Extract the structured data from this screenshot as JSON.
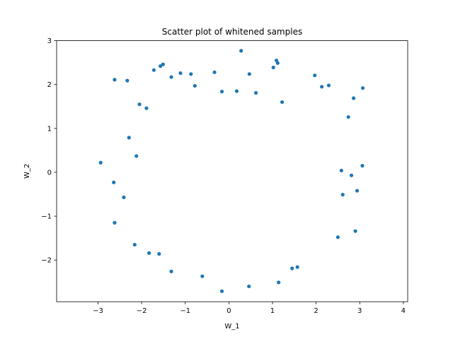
{
  "chart_data": {
    "type": "scatter",
    "title": "Scatter plot of whitened samples",
    "xlabel": "W_1",
    "ylabel": "W_2",
    "xlim": [
      -3.95,
      4.1
    ],
    "ylim": [
      -2.95,
      3.0
    ],
    "xticks": [
      -3,
      -2,
      -1,
      0,
      1,
      2,
      3,
      4
    ],
    "yticks": [
      -2,
      -1,
      0,
      1,
      2,
      3
    ],
    "xtick_labels": [
      "−3",
      "−2",
      "−1",
      "0",
      "1",
      "2",
      "3",
      "4"
    ],
    "ytick_labels": [
      "−2",
      "−1",
      "0",
      "1",
      "2",
      "3"
    ],
    "grid": false,
    "marker_color": "#1f77b4",
    "series": [
      {
        "points": [
          [
            -2.62,
            2.11
          ],
          [
            -2.33,
            2.09
          ],
          [
            -1.72,
            2.33
          ],
          [
            -1.57,
            2.42
          ],
          [
            -1.51,
            2.46
          ],
          [
            -1.32,
            2.17
          ],
          [
            -1.11,
            2.26
          ],
          [
            -0.87,
            2.24
          ],
          [
            -0.33,
            2.28
          ],
          [
            0.28,
            2.77
          ],
          [
            0.47,
            2.24
          ],
          [
            1.02,
            2.39
          ],
          [
            1.12,
            2.49
          ],
          [
            1.09,
            2.55
          ],
          [
            2.29,
            1.98
          ],
          [
            3.07,
            1.92
          ],
          [
            -2.94,
            0.22
          ],
          [
            -2.64,
            -0.23
          ],
          [
            -2.62,
            -1.15
          ],
          [
            -2.29,
            0.79
          ],
          [
            -2.12,
            0.37
          ],
          [
            -2.41,
            -0.57
          ],
          [
            -2.16,
            -1.65
          ],
          [
            -1.83,
            -1.84
          ],
          [
            -1.6,
            -1.86
          ],
          [
            -1.32,
            -2.26
          ],
          [
            -0.61,
            -2.37
          ],
          [
            -0.16,
            -2.71
          ],
          [
            0.46,
            -2.6
          ],
          [
            1.14,
            -2.51
          ],
          [
            1.45,
            -2.19
          ],
          [
            1.57,
            -2.16
          ],
          [
            2.5,
            -1.48
          ],
          [
            2.9,
            -1.34
          ],
          [
            2.94,
            -0.42
          ],
          [
            3.06,
            0.15
          ],
          [
            2.81,
            -0.07
          ],
          [
            2.58,
            0.04
          ],
          [
            2.61,
            -0.51
          ],
          [
            2.86,
            1.69
          ],
          [
            2.74,
            1.26
          ],
          [
            2.13,
            1.95
          ],
          [
            1.97,
            2.21
          ],
          [
            -0.78,
            1.97
          ],
          [
            -0.16,
            1.84
          ],
          [
            0.18,
            1.85
          ],
          [
            0.62,
            1.81
          ],
          [
            1.22,
            1.6
          ],
          [
            -2.05,
            1.55
          ],
          [
            -1.89,
            1.46
          ]
        ]
      }
    ]
  }
}
